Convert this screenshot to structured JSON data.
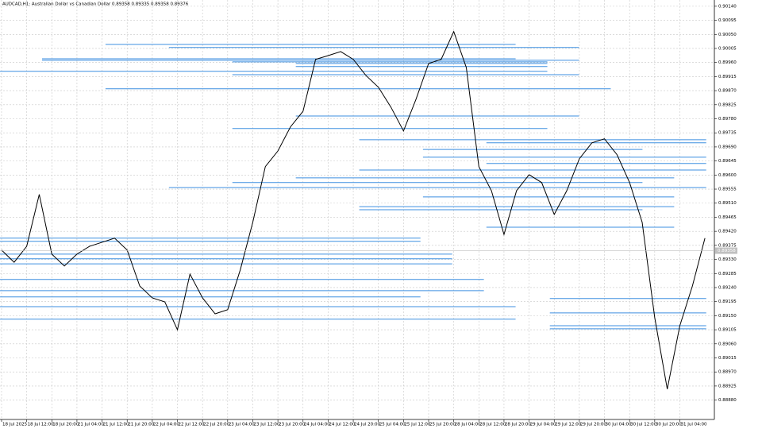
{
  "chart_data": {
    "type": "line",
    "title": "AUDCAD,H1: Australian Dollar vs Canadian Dollar 0.89358 0.89335 0.89358 0.89376",
    "x": [
      0,
      4,
      8,
      12,
      16,
      20,
      24,
      28,
      32,
      36,
      40,
      44,
      48,
      52,
      56,
      60,
      64,
      68,
      72,
      76,
      80,
      84,
      88,
      92,
      96,
      100,
      104,
      108,
      112,
      116,
      120,
      124,
      128,
      132,
      136,
      140,
      144,
      148,
      152,
      156,
      160,
      164,
      168,
      172,
      176,
      180,
      184,
      188,
      192,
      196,
      200,
      204,
      208,
      212,
      216,
      220,
      224
    ],
    "series": [
      {
        "color": "#000000",
        "values": [
          0.8936,
          0.89321,
          0.89372,
          0.89538,
          0.89347,
          0.89309,
          0.89347,
          0.89372,
          0.89385,
          0.89398,
          0.8936,
          0.89245,
          0.89207,
          0.89194,
          0.89105,
          0.89283,
          0.89207,
          0.89156,
          0.89169,
          0.89296,
          0.89449,
          0.89627,
          0.89677,
          0.89754,
          0.89804,
          0.8997,
          0.89982,
          0.89995,
          0.8997,
          0.89919,
          0.89881,
          0.89817,
          0.89741,
          0.89843,
          0.89957,
          0.8997,
          0.90059,
          0.89944,
          0.89627,
          0.8955,
          0.8941,
          0.8955,
          0.89601,
          0.89576,
          0.89474,
          0.8955,
          0.89652,
          0.89703,
          0.89716,
          0.89665,
          0.89576,
          0.89449,
          0.89144,
          0.88915,
          0.89118,
          0.89245,
          0.89398
        ]
      }
    ],
    "levels": {
      "color": "#3d8fe0",
      "values": [
        0.90018,
        0.90008,
        0.89972,
        0.89967,
        0.89962,
        0.89957,
        0.89947,
        0.89932,
        0.89921,
        0.89876,
        0.89789,
        0.89749,
        0.89713,
        0.89703,
        0.89682,
        0.89657,
        0.89637,
        0.89616,
        0.89591,
        0.89576,
        0.8956,
        0.8953,
        0.89499,
        0.89489,
        0.89433,
        0.89398,
        0.89388,
        0.89347,
        0.89332,
        0.89316,
        0.89266,
        0.8923,
        0.8921,
        0.89179,
        0.89139,
        0.89205,
        0.89159,
        0.89118,
        0.89108
      ],
      "x_start": [
        33.1,
        53.3,
        12.9,
        12.9,
        73.5,
        93.7,
        93.7,
        -0.5,
        73.5,
        33.1,
        93.7,
        73.5,
        113.9,
        154.4,
        134.2,
        134.2,
        154.4,
        113.9,
        93.7,
        73.5,
        53.3,
        134.2,
        113.9,
        113.9,
        154.4,
        -0.5,
        -0.5,
        -0.5,
        -0.5,
        -0.5,
        -0.5,
        -0.5,
        -0.5,
        -0.5,
        -0.5,
        174.6,
        174.6,
        174.6,
        174.6
      ],
      "x_end": [
        163.7,
        183.9,
        163.7,
        183.9,
        173.8,
        173.8,
        173.8,
        173.8,
        183.9,
        194.0,
        183.9,
        173.8,
        224.4,
        224.4,
        204.1,
        224.4,
        224.4,
        224.4,
        214.2,
        204.1,
        224.4,
        214.2,
        214.2,
        204.1,
        214.2,
        133.4,
        133.4,
        143.5,
        143.5,
        143.5,
        153.6,
        153.6,
        133.4,
        163.7,
        163.7,
        224.4,
        224.4,
        224.4,
        224.4
      ]
    },
    "last_price": 0.89358,
    "xlim": [
      -0.5,
      227
    ],
    "ylim": [
      0.88818,
      0.9016
    ],
    "grid": true,
    "xticks": [
      {
        "value": 0,
        "label": "18 Jul 2025"
      },
      {
        "value": 8,
        "label": "18 Jul 12:00"
      },
      {
        "value": 16,
        "label": "18 Jul 20:00"
      },
      {
        "value": 24,
        "label": "21 Jul 04:00"
      },
      {
        "value": 32,
        "label": "21 Jul 12:00"
      },
      {
        "value": 40,
        "label": "21 Jul 20:00"
      },
      {
        "value": 48,
        "label": "22 Jul 04:00"
      },
      {
        "value": 56,
        "label": "22 Jul 12:00"
      },
      {
        "value": 64,
        "label": "22 Jul 20:00"
      },
      {
        "value": 72,
        "label": "23 Jul 04:00"
      },
      {
        "value": 80,
        "label": "23 Jul 12:00"
      },
      {
        "value": 88,
        "label": "23 Jul 20:00"
      },
      {
        "value": 96,
        "label": "24 Jul 04:00"
      },
      {
        "value": 104,
        "label": "24 Jul 12:00"
      },
      {
        "value": 112,
        "label": "24 Jul 20:00"
      },
      {
        "value": 120,
        "label": "25 Jul 04:00"
      },
      {
        "value": 128,
        "label": "25 Jul 12:00"
      },
      {
        "value": 136,
        "label": "25 Jul 20:00"
      },
      {
        "value": 144,
        "label": "28 Jul 04:00"
      },
      {
        "value": 152,
        "label": "28 Jul 12:00"
      },
      {
        "value": 160,
        "label": "28 Jul 20:00"
      },
      {
        "value": 168,
        "label": "29 Jul 04:00"
      },
      {
        "value": 176,
        "label": "29 Jul 12:00"
      },
      {
        "value": 184,
        "label": "29 Jul 20:00"
      },
      {
        "value": 192,
        "label": "30 Jul 04:00"
      },
      {
        "value": 200,
        "label": "30 Jul 12:00"
      },
      {
        "value": 208,
        "label": "30 Jul 20:00"
      },
      {
        "value": 216,
        "label": "31 Jul 04:00"
      }
    ],
    "yticks": [
      {
        "value": 0.9014,
        "label": "0.90140"
      },
      0.90095,
      {
        "value": 0.9005,
        "label": "0.90050"
      },
      0.90005,
      {
        "value": 0.8996,
        "label": "0.89960"
      },
      0.89915,
      {
        "value": 0.8987,
        "label": "0.89870"
      },
      0.89825,
      {
        "value": 0.8978,
        "label": "0.89780"
      },
      0.89735,
      {
        "value": 0.8969,
        "label": "0.89690"
      },
      0.89645,
      {
        "value": 0.896,
        "label": "0.89600"
      },
      0.89555,
      {
        "value": 0.8951,
        "label": "0.89510"
      },
      0.89465,
      {
        "value": 0.8942,
        "label": "0.89420"
      },
      0.89375,
      {
        "value": 0.8933,
        "label": "0.89330"
      },
      0.89285,
      {
        "value": 0.8924,
        "label": "0.89240"
      },
      0.89195,
      {
        "value": 0.8915,
        "label": "0.89150"
      },
      0.89105,
      {
        "value": 0.8906,
        "label": "0.89060"
      },
      0.89015,
      {
        "value": 0.8897,
        "label": "0.88970"
      },
      0.88925,
      {
        "value": 0.8888,
        "label": "0.88880"
      }
    ]
  }
}
